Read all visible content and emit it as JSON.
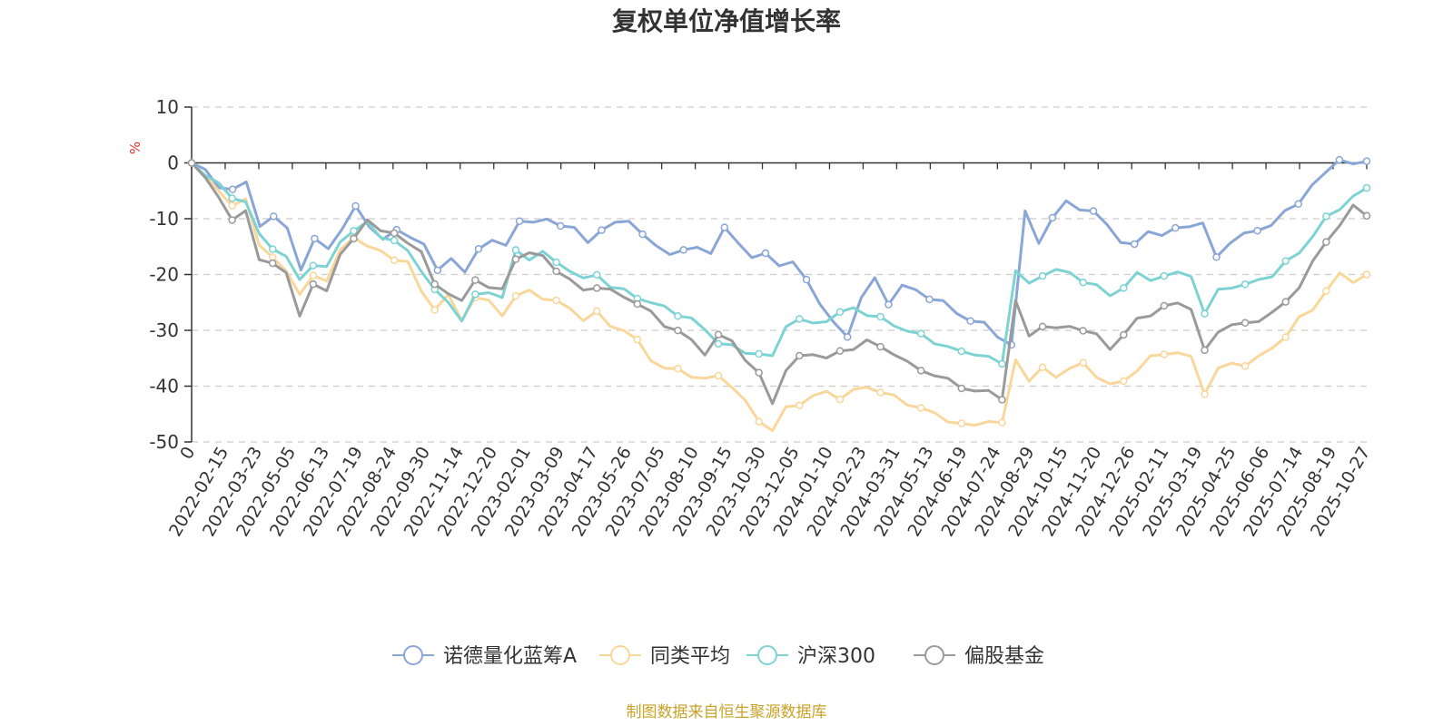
{
  "chart_data": {
    "type": "line",
    "title": "复权单位净值增长率",
    "ylabel": "%",
    "ylim": [
      -50,
      10
    ],
    "yticks": [
      10,
      0,
      -10,
      -20,
      -30,
      -40,
      -50
    ],
    "grid": true,
    "legend_position": "bottom",
    "source": "制图数据来自恒生聚源数据库",
    "x_ticks": [
      "0",
      "2022-02-15",
      "2022-03-23",
      "2022-05-05",
      "2022-06-13",
      "2022-07-19",
      "2022-08-24",
      "2022-09-30",
      "2022-11-14",
      "2022-12-20",
      "2023-02-01",
      "2023-03-09",
      "2023-04-17",
      "2023-05-26",
      "2023-07-05",
      "2023-08-10",
      "2023-09-15",
      "2023-10-30",
      "2023-12-05",
      "2024-01-10",
      "2024-02-23",
      "2024-03-31",
      "2024-05-13",
      "2024-06-19",
      "2024-07-24",
      "2024-08-29",
      "2024-10-15",
      "2024-11-20",
      "2024-12-26",
      "2025-02-11",
      "2025-03-19",
      "2025-04-25",
      "2025-06-06",
      "2025-07-14",
      "2025-08-19",
      "2025-10-27"
    ],
    "series": [
      {
        "name": "诺德量化蓝筹A",
        "color": "#8aa6d6",
        "values": [
          0,
          -1.5,
          -4,
          -5,
          -3.5,
          -11,
          -10,
          -11.5,
          -19,
          -14,
          -15,
          -12,
          -8,
          -11,
          -14,
          -12,
          -13,
          -15,
          -19,
          -17,
          -20,
          -15,
          -14,
          -15,
          -10,
          -11,
          -10,
          -11,
          -12,
          -14,
          -12,
          -11,
          -10,
          -13,
          -15,
          -16,
          -16,
          -15,
          -16,
          -12,
          -14,
          -17,
          -16.5,
          -18,
          -18,
          -21,
          -25,
          -29,
          -31,
          -24,
          -21,
          -25,
          -22,
          -23,
          -24,
          -25,
          -27,
          -28,
          -29,
          -31,
          -32.5,
          -9,
          -14,
          -10,
          -7,
          -8,
          -9,
          -11,
          -14,
          -15,
          -12,
          -13,
          -12,
          -11,
          -11,
          -17,
          -14,
          -13,
          -12,
          -11,
          -9,
          -7,
          -4,
          -2,
          1,
          -0.5,
          0.3
        ]
      },
      {
        "name": "同类平均",
        "color": "#f9d79a",
        "values": [
          0,
          -2,
          -5,
          -8,
          -6,
          -15,
          -17,
          -19,
          -24,
          -20,
          -21,
          -16,
          -13,
          -15,
          -16,
          -17,
          -18,
          -23,
          -26,
          -24,
          -28,
          -24,
          -25,
          -27,
          -24,
          -23,
          -24,
          -25,
          -26,
          -28,
          -27,
          -29,
          -30,
          -32,
          -35,
          -37,
          -37,
          -38,
          -39,
          -38,
          -40,
          -43,
          -46,
          -48,
          -44,
          -43,
          -42,
          -41,
          -42,
          -41,
          -40,
          -41,
          -42,
          -43,
          -44,
          -45,
          -46,
          -47,
          -47,
          -46,
          -47,
          -35,
          -39,
          -37,
          -38,
          -37,
          -36,
          -38,
          -40,
          -39,
          -37,
          -35,
          -34,
          -34,
          -35,
          -41,
          -37,
          -36,
          -36,
          -35,
          -33,
          -31,
          -28,
          -26,
          -23,
          -20,
          -21,
          -20
        ]
      },
      {
        "name": "沪深300",
        "color": "#7dd3d3",
        "values": [
          0,
          -2,
          -4,
          -6,
          -7,
          -13,
          -15,
          -17,
          -21,
          -18,
          -19,
          -14,
          -12,
          -11,
          -13,
          -14,
          -16,
          -19,
          -23,
          -25,
          -28,
          -24,
          -23,
          -24,
          -16,
          -17,
          -16,
          -18,
          -19,
          -21,
          -20,
          -22,
          -23,
          -24,
          -25,
          -26,
          -27,
          -28,
          -30,
          -32,
          -33,
          -34,
          -34,
          -35,
          -29,
          -28,
          -29,
          -28,
          -27,
          -26,
          -27,
          -28,
          -29,
          -30,
          -31,
          -32,
          -33,
          -34,
          -34,
          -35,
          -36,
          -19,
          -22,
          -20,
          -19,
          -20,
          -21,
          -22,
          -24,
          -22,
          -20,
          -21,
          -20,
          -20,
          -20,
          -27,
          -23,
          -22,
          -22,
          -21,
          -20,
          -18,
          -16,
          -13,
          -10,
          -8,
          -6,
          -4.5
        ]
      },
      {
        "name": "偏股基金",
        "color": "#9a9a9a",
        "values": [
          0,
          -3,
          -6,
          -10,
          -9,
          -17,
          -18,
          -20,
          -27,
          -22,
          -23,
          -16,
          -14,
          -10,
          -12,
          -13,
          -14,
          -16,
          -22,
          -23,
          -25,
          -21,
          -22,
          -23,
          -17,
          -16,
          -17,
          -19,
          -21,
          -23,
          -22,
          -23,
          -24,
          -25,
          -27,
          -29,
          -30,
          -32,
          -34,
          -31,
          -32,
          -35,
          -38,
          -43,
          -37,
          -35,
          -34,
          -35,
          -34,
          -33,
          -32,
          -33,
          -34,
          -36,
          -37,
          -38,
          -39,
          -40,
          -41,
          -41,
          -42,
          -25,
          -31,
          -29,
          -30,
          -29,
          -30,
          -31,
          -33,
          -31,
          -28,
          -27,
          -26,
          -25,
          -26,
          -34,
          -30,
          -29,
          -29,
          -28,
          -27,
          -25,
          -22,
          -18,
          -14,
          -11,
          -8,
          -9.5
        ]
      }
    ]
  }
}
